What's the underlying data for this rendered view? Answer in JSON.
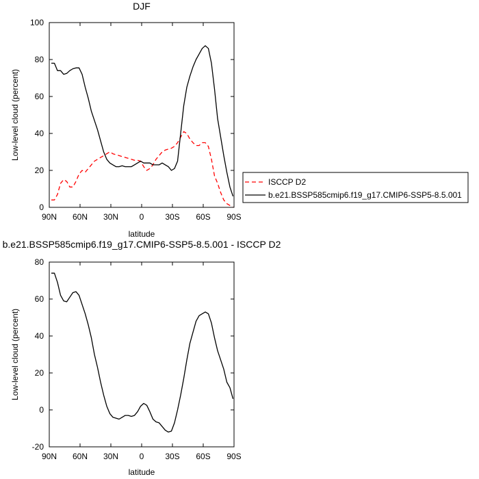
{
  "chart_data": [
    {
      "type": "line",
      "title": "DJF",
      "xlabel": "latitude",
      "ylabel": "Low-level cloud (percent)",
      "xlim": [
        90,
        -90
      ],
      "ylim": [
        0,
        100
      ],
      "x_ticks": [
        90,
        60,
        30,
        0,
        -30,
        -60,
        -90
      ],
      "x_tick_labels": [
        "90N",
        "60N",
        "30N",
        "0",
        "30S",
        "60S",
        "90S"
      ],
      "y_ticks": [
        0,
        20,
        40,
        60,
        80,
        100
      ],
      "y_tick_labels": [
        "0",
        "20",
        "40",
        "60",
        "80",
        "100"
      ],
      "grid": false,
      "legend": {
        "position": "right",
        "entries": [
          "ISCCP D2",
          "b.e21.BSSP585cmip6.f19_g17.CMIP6-SSP5-8.5.001"
        ]
      },
      "series": [
        {
          "name": "ISCCP D2",
          "color": "#ff0000",
          "dash": "dashed",
          "points": [
            [
              88,
              4
            ],
            [
              85,
              4
            ],
            [
              82,
              7
            ],
            [
              79,
              13
            ],
            [
              76,
              15
            ],
            [
              73,
              14
            ],
            [
              70,
              11
            ],
            [
              67,
              11
            ],
            [
              64,
              14
            ],
            [
              61,
              18
            ],
            [
              58,
              20
            ],
            [
              55,
              19
            ],
            [
              52,
              21
            ],
            [
              49,
              23
            ],
            [
              46,
              25
            ],
            [
              43,
              26
            ],
            [
              40,
              27
            ],
            [
              37,
              28
            ],
            [
              34,
              29
            ],
            [
              31,
              30
            ],
            [
              28,
              29
            ],
            [
              25,
              28.5
            ],
            [
              22,
              28
            ],
            [
              19,
              27.5
            ],
            [
              16,
              27
            ],
            [
              13,
              26.5
            ],
            [
              10,
              26
            ],
            [
              7,
              25.5
            ],
            [
              4,
              25.5
            ],
            [
              1,
              25
            ],
            [
              -2,
              22
            ],
            [
              -5,
              20
            ],
            [
              -8,
              21
            ],
            [
              -11,
              23
            ],
            [
              -14,
              26
            ],
            [
              -17,
              28
            ],
            [
              -20,
              30
            ],
            [
              -23,
              31
            ],
            [
              -26,
              31.5
            ],
            [
              -29,
              32
            ],
            [
              -32,
              33
            ],
            [
              -35,
              35
            ],
            [
              -38,
              38
            ],
            [
              -41,
              41
            ],
            [
              -44,
              40
            ],
            [
              -47,
              37
            ],
            [
              -50,
              35
            ],
            [
              -53,
              33.5
            ],
            [
              -56,
              33.5
            ],
            [
              -59,
              35
            ],
            [
              -62,
              35
            ],
            [
              -65,
              33
            ],
            [
              -68,
              26
            ],
            [
              -71,
              17
            ],
            [
              -74,
              13
            ],
            [
              -77,
              8
            ],
            [
              -80,
              4
            ],
            [
              -83,
              2
            ],
            [
              -86,
              1
            ],
            [
              -89,
              0
            ]
          ]
        },
        {
          "name": "b.e21.BSSP585cmip6.f19_g17.CMIP6-SSP5-8.5.001",
          "color": "#000000",
          "dash": "solid",
          "points": [
            [
              88,
              78
            ],
            [
              85,
              78
            ],
            [
              82,
              74
            ],
            [
              79,
              74
            ],
            [
              76,
              72
            ],
            [
              73,
              72.5
            ],
            [
              70,
              74
            ],
            [
              67,
              75
            ],
            [
              64,
              75.5
            ],
            [
              61,
              75.5
            ],
            [
              58,
              72
            ],
            [
              55,
              65
            ],
            [
              52,
              59
            ],
            [
              49,
              52
            ],
            [
              46,
              47
            ],
            [
              43,
              42
            ],
            [
              40,
              36
            ],
            [
              37,
              30
            ],
            [
              34,
              26
            ],
            [
              31,
              24
            ],
            [
              28,
              23
            ],
            [
              25,
              22
            ],
            [
              22,
              22
            ],
            [
              19,
              22.5
            ],
            [
              16,
              22
            ],
            [
              13,
              22
            ],
            [
              10,
              22
            ],
            [
              7,
              23
            ],
            [
              4,
              24
            ],
            [
              1,
              25
            ],
            [
              -2,
              24
            ],
            [
              -5,
              24
            ],
            [
              -8,
              24
            ],
            [
              -11,
              23
            ],
            [
              -14,
              23
            ],
            [
              -17,
              23
            ],
            [
              -20,
              24
            ],
            [
              -23,
              23
            ],
            [
              -26,
              22
            ],
            [
              -29,
              20
            ],
            [
              -32,
              21
            ],
            [
              -35,
              25
            ],
            [
              -38,
              40
            ],
            [
              -41,
              55
            ],
            [
              -44,
              65
            ],
            [
              -47,
              71
            ],
            [
              -50,
              76
            ],
            [
              -53,
              80
            ],
            [
              -56,
              83
            ],
            [
              -59,
              86
            ],
            [
              -62,
              87.5
            ],
            [
              -65,
              86
            ],
            [
              -68,
              78
            ],
            [
              -71,
              64
            ],
            [
              -74,
              48
            ],
            [
              -77,
              38
            ],
            [
              -80,
              28
            ],
            [
              -83,
              19
            ],
            [
              -86,
              11
            ],
            [
              -89,
              6
            ]
          ]
        }
      ]
    },
    {
      "type": "line",
      "title": "b.e21.BSSP585cmip6.f19_g17.CMIP6-SSP5-8.5.001 - ISCCP D2",
      "xlabel": "latitude",
      "ylabel": "Low-level cloud (percent)",
      "xlim": [
        90,
        -90
      ],
      "ylim": [
        -20,
        80
      ],
      "x_ticks": [
        90,
        60,
        30,
        0,
        -30,
        -60,
        -90
      ],
      "x_tick_labels": [
        "90N",
        "60N",
        "30N",
        "0",
        "30S",
        "60S",
        "90S"
      ],
      "y_ticks": [
        -20,
        0,
        20,
        40,
        60,
        80
      ],
      "y_tick_labels": [
        "-20",
        "0",
        "20",
        "40",
        "60",
        "80"
      ],
      "grid": false,
      "series": [
        {
          "color": "#000000",
          "dash": "solid",
          "points": [
            [
              88,
              74
            ],
            [
              85,
              74
            ],
            [
              82,
              69
            ],
            [
              79,
              62
            ],
            [
              76,
              59
            ],
            [
              73,
              58.5
            ],
            [
              70,
              61
            ],
            [
              67,
              63.5
            ],
            [
              64,
              64
            ],
            [
              61,
              62
            ],
            [
              58,
              57
            ],
            [
              55,
              52
            ],
            [
              52,
              46
            ],
            [
              49,
              39
            ],
            [
              46,
              30
            ],
            [
              43,
              23
            ],
            [
              40,
              15
            ],
            [
              37,
              8
            ],
            [
              34,
              2
            ],
            [
              31,
              -2
            ],
            [
              28,
              -4
            ],
            [
              25,
              -4.5
            ],
            [
              22,
              -5
            ],
            [
              19,
              -4
            ],
            [
              16,
              -3
            ],
            [
              13,
              -3
            ],
            [
              10,
              -3.5
            ],
            [
              7,
              -3
            ],
            [
              4,
              -1
            ],
            [
              1,
              2
            ],
            [
              -2,
              3.5
            ],
            [
              -5,
              2.5
            ],
            [
              -8,
              -1
            ],
            [
              -11,
              -5
            ],
            [
              -14,
              -6.5
            ],
            [
              -17,
              -7
            ],
            [
              -20,
              -9
            ],
            [
              -23,
              -11
            ],
            [
              -26,
              -12
            ],
            [
              -29,
              -11.5
            ],
            [
              -32,
              -7
            ],
            [
              -35,
              0
            ],
            [
              -38,
              8
            ],
            [
              -41,
              17
            ],
            [
              -44,
              27
            ],
            [
              -47,
              36
            ],
            [
              -50,
              42
            ],
            [
              -53,
              48
            ],
            [
              -56,
              51
            ],
            [
              -59,
              52
            ],
            [
              -62,
              53
            ],
            [
              -65,
              52
            ],
            [
              -68,
              47
            ],
            [
              -71,
              39
            ],
            [
              -74,
              32
            ],
            [
              -77,
              27
            ],
            [
              -80,
              22
            ],
            [
              -83,
              15
            ],
            [
              -86,
              12
            ],
            [
              -89,
              6
            ]
          ]
        }
      ]
    }
  ]
}
